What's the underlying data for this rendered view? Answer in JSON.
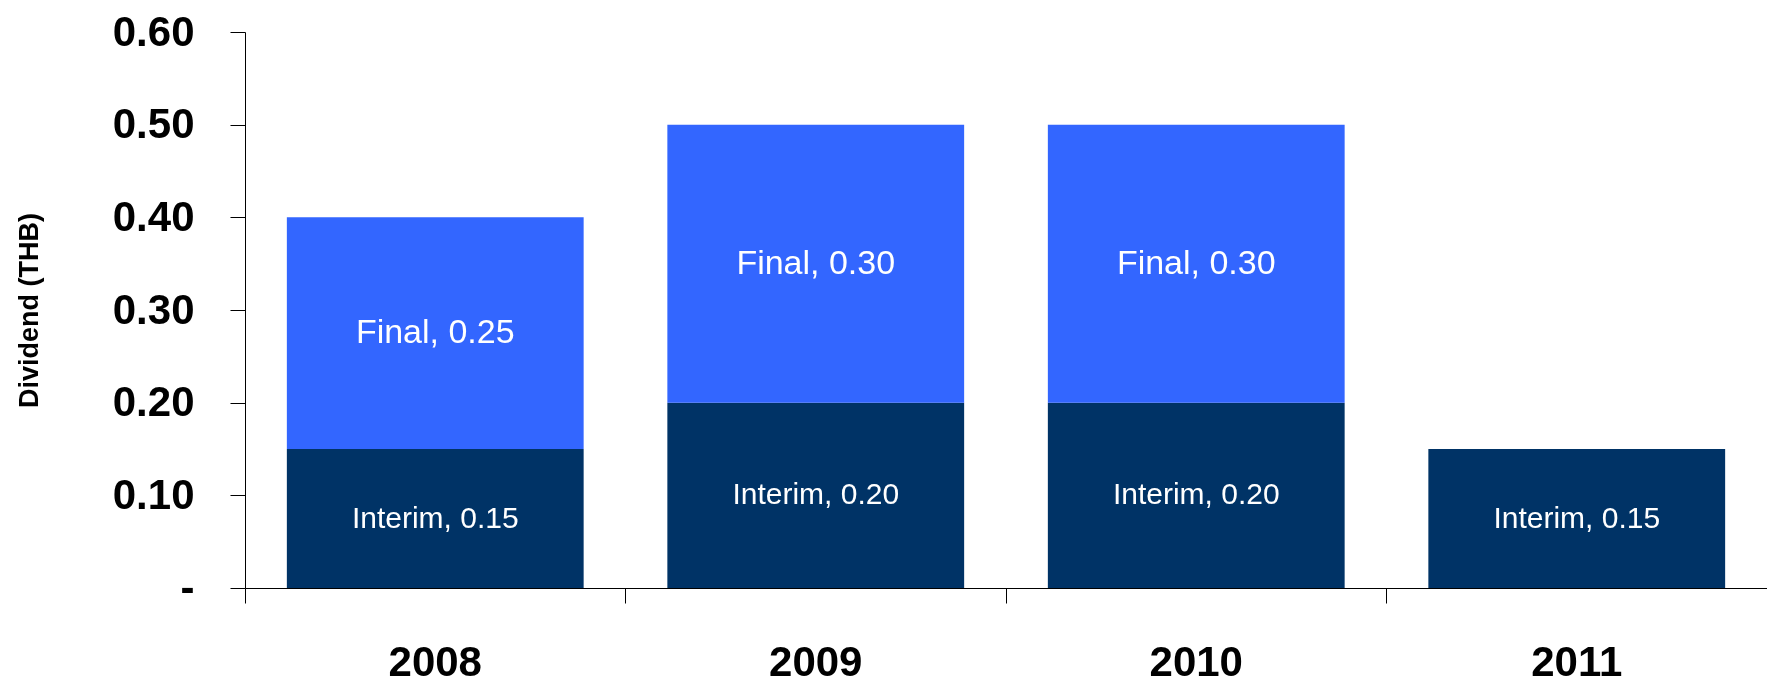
{
  "chart_data": {
    "type": "bar",
    "ylabel": "Dividend (THB)",
    "categories": [
      "2008",
      "2009",
      "2010",
      "2011"
    ],
    "stacked": true,
    "series": [
      {
        "color": "#003366",
        "values": [
          0.15,
          0.2,
          0.2,
          0.15
        ],
        "value_labels": [
          "Interim, 0.15",
          "Interim, 0.20",
          "Interim, 0.20",
          "Interim, 0.15"
        ]
      },
      {
        "color": "#3366ff",
        "values": [
          0.25,
          0.3,
          0.3,
          null
        ],
        "value_labels": [
          "Final, 0.25",
          "Final, 0.30",
          "Final, 0.30",
          null
        ]
      }
    ],
    "ylim": [
      0,
      0.6
    ],
    "yticks": [
      {
        "value": 0,
        "label": "-"
      },
      {
        "value": 0.1,
        "label": "0.10"
      },
      {
        "value": 0.2,
        "label": "0.20"
      },
      {
        "value": 0.3,
        "label": "0.30"
      },
      {
        "value": 0.4,
        "label": "0.40"
      },
      {
        "value": 0.5,
        "label": "0.50"
      },
      {
        "value": 0.6,
        "label": "0.60"
      }
    ],
    "grid": false,
    "legend": false
  }
}
